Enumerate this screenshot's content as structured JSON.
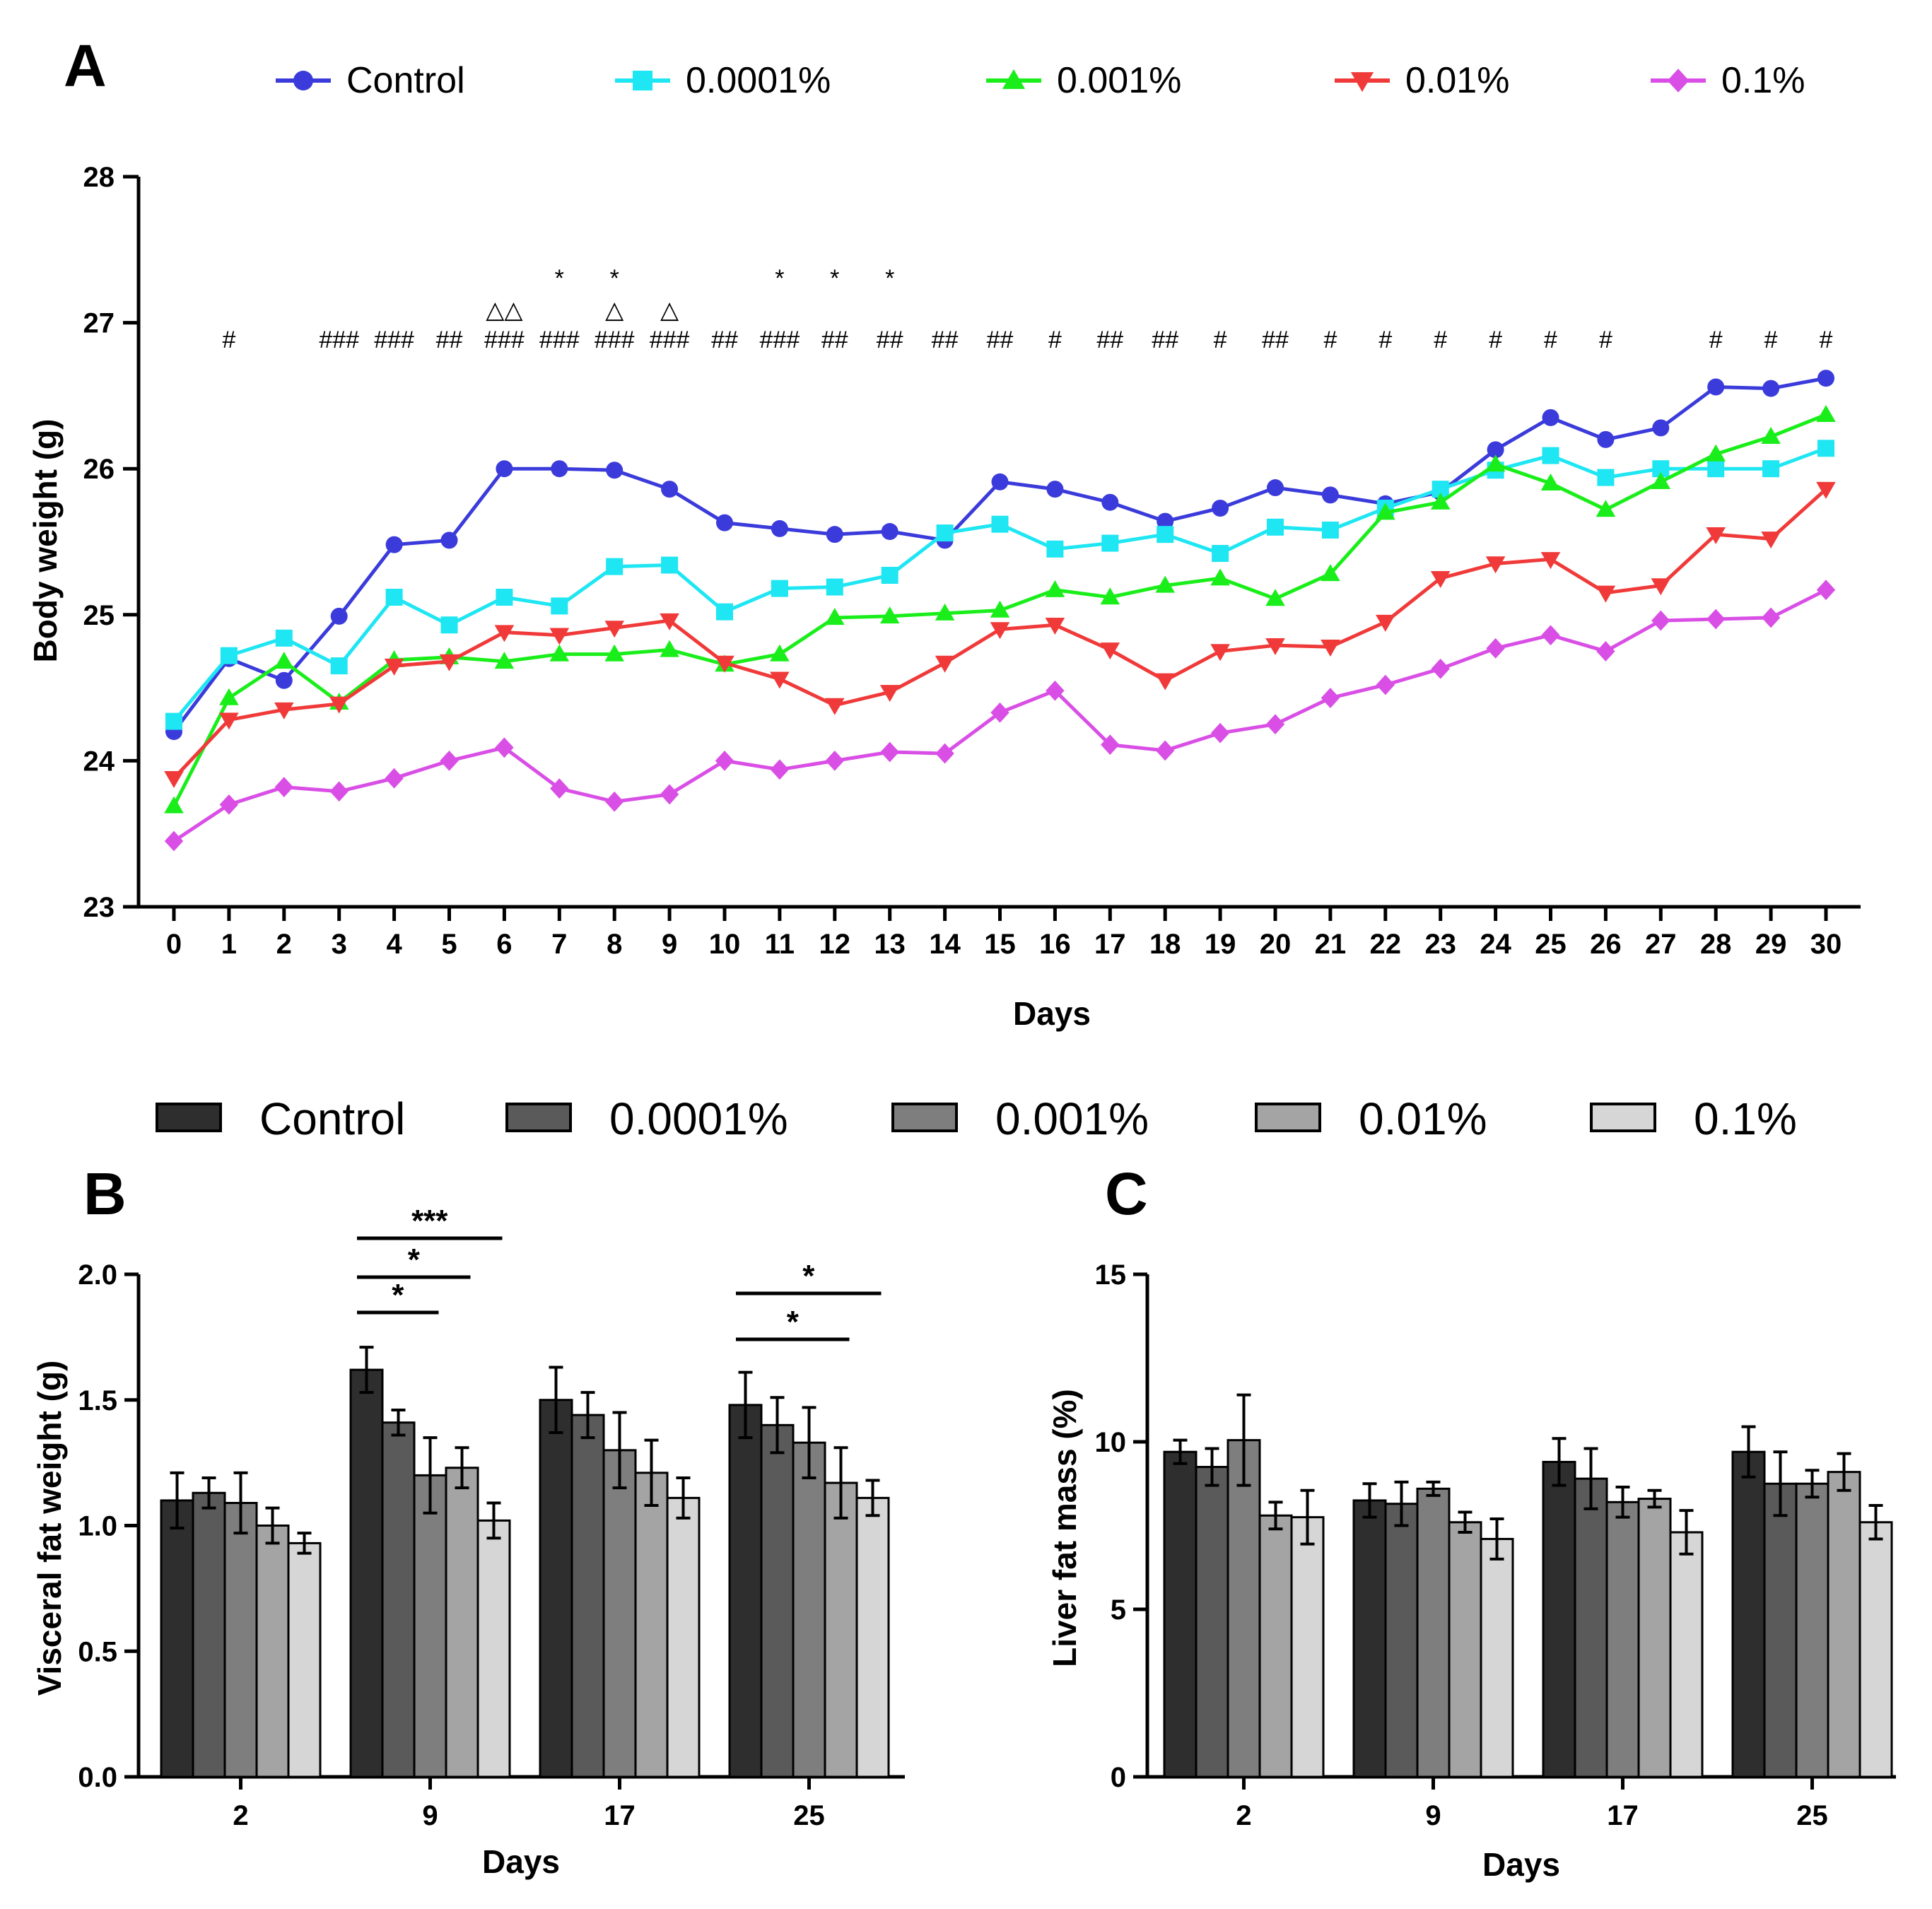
{
  "figure": {
    "panel_labels": [
      "A",
      "B",
      "C"
    ]
  },
  "chart_data": [
    {
      "panel": "A",
      "type": "line",
      "title": "",
      "xlabel": "Days",
      "ylabel": "Body weight (g)",
      "x": [
        0,
        1,
        2,
        3,
        4,
        5,
        6,
        7,
        8,
        9,
        10,
        11,
        12,
        13,
        14,
        15,
        16,
        17,
        18,
        19,
        20,
        21,
        22,
        23,
        24,
        25,
        26,
        27,
        28,
        29,
        30
      ],
      "ylim": [
        23,
        28
      ],
      "yticks": [
        23,
        24,
        25,
        26,
        27,
        28
      ],
      "legend_position": "top",
      "series": [
        {
          "name": "Control",
          "color": "#3b3bdb",
          "marker": "circle",
          "values": [
            24.2,
            24.7,
            24.55,
            24.99,
            25.48,
            25.51,
            26.0,
            26.0,
            25.99,
            25.86,
            25.63,
            25.59,
            25.55,
            25.57,
            25.51,
            25.91,
            25.86,
            25.77,
            25.64,
            25.73,
            25.87,
            25.82,
            25.76,
            25.84,
            26.13,
            26.35,
            26.2,
            26.28,
            26.56,
            26.55,
            26.62
          ]
        },
        {
          "name": "0.0001%",
          "color": "#1ee6f2",
          "marker": "square",
          "values": [
            24.27,
            24.72,
            24.84,
            24.65,
            25.12,
            24.93,
            25.12,
            25.06,
            25.33,
            25.34,
            25.02,
            25.18,
            25.19,
            25.27,
            25.56,
            25.62,
            25.45,
            25.49,
            25.55,
            25.42,
            25.6,
            25.58,
            25.73,
            25.86,
            25.99,
            26.09,
            25.94,
            26.0,
            26.0,
            26.0,
            26.14
          ]
        },
        {
          "name": "0.001%",
          "color": "#1aee1a",
          "marker": "triangle-up",
          "values": [
            23.69,
            24.43,
            24.68,
            24.4,
            24.69,
            24.71,
            24.68,
            24.73,
            24.73,
            24.76,
            24.66,
            24.73,
            24.98,
            24.99,
            25.01,
            25.03,
            25.17,
            25.12,
            25.2,
            25.25,
            25.11,
            25.28,
            25.7,
            25.77,
            26.03,
            25.9,
            25.72,
            25.91,
            26.1,
            26.22,
            26.37
          ]
        },
        {
          "name": "0.01%",
          "color": "#f03a3a",
          "marker": "triangle-down",
          "values": [
            23.88,
            24.28,
            24.35,
            24.39,
            24.65,
            24.68,
            24.88,
            24.86,
            24.91,
            24.96,
            24.67,
            24.56,
            24.38,
            24.47,
            24.67,
            24.9,
            24.93,
            24.76,
            24.55,
            24.75,
            24.79,
            24.78,
            24.95,
            25.25,
            25.35,
            25.38,
            25.15,
            25.2,
            25.55,
            25.52,
            25.86
          ]
        },
        {
          "name": "0.1%",
          "color": "#d94fe6",
          "marker": "diamond",
          "values": [
            23.45,
            23.7,
            23.82,
            23.79,
            23.88,
            24.0,
            24.09,
            23.81,
            23.72,
            23.77,
            24.0,
            23.94,
            24.0,
            24.06,
            24.05,
            24.33,
            24.48,
            24.11,
            24.07,
            24.19,
            24.25,
            24.43,
            24.52,
            24.63,
            24.77,
            24.86,
            24.75,
            24.96,
            24.97,
            24.98,
            25.17
          ]
        }
      ],
      "annotations": [
        {
          "day": 1,
          "hash": "#",
          "triangle": "",
          "star": ""
        },
        {
          "day": 3,
          "hash": "###",
          "triangle": "",
          "star": ""
        },
        {
          "day": 4,
          "hash": "###",
          "triangle": "",
          "star": ""
        },
        {
          "day": 5,
          "hash": "##",
          "triangle": "",
          "star": ""
        },
        {
          "day": 6,
          "hash": "###",
          "triangle": "△△",
          "star": ""
        },
        {
          "day": 7,
          "hash": "###",
          "triangle": "",
          "star": "*"
        },
        {
          "day": 8,
          "hash": "###",
          "triangle": "△",
          "star": "*"
        },
        {
          "day": 9,
          "hash": "###",
          "triangle": "△",
          "star": ""
        },
        {
          "day": 10,
          "hash": "##",
          "triangle": "",
          "star": ""
        },
        {
          "day": 11,
          "hash": "###",
          "triangle": "",
          "star": "*"
        },
        {
          "day": 12,
          "hash": "##",
          "triangle": "",
          "star": "*"
        },
        {
          "day": 13,
          "hash": "##",
          "triangle": "",
          "star": "*"
        },
        {
          "day": 14,
          "hash": "##",
          "triangle": "",
          "star": ""
        },
        {
          "day": 15,
          "hash": "##",
          "triangle": "",
          "star": ""
        },
        {
          "day": 16,
          "hash": "#",
          "triangle": "",
          "star": ""
        },
        {
          "day": 17,
          "hash": "##",
          "triangle": "",
          "star": ""
        },
        {
          "day": 18,
          "hash": "##",
          "triangle": "",
          "star": ""
        },
        {
          "day": 19,
          "hash": "#",
          "triangle": "",
          "star": ""
        },
        {
          "day": 20,
          "hash": "##",
          "triangle": "",
          "star": ""
        },
        {
          "day": 21,
          "hash": "#",
          "triangle": "",
          "star": ""
        },
        {
          "day": 22,
          "hash": "#",
          "triangle": "",
          "star": ""
        },
        {
          "day": 23,
          "hash": "#",
          "triangle": "",
          "star": ""
        },
        {
          "day": 24,
          "hash": "#",
          "triangle": "",
          "star": ""
        },
        {
          "day": 25,
          "hash": "#",
          "triangle": "",
          "star": ""
        },
        {
          "day": 26,
          "hash": "#",
          "triangle": "",
          "star": ""
        },
        {
          "day": 28,
          "hash": "#",
          "triangle": "",
          "star": ""
        },
        {
          "day": 29,
          "hash": "#",
          "triangle": "",
          "star": ""
        },
        {
          "day": 30,
          "hash": "#",
          "triangle": "",
          "star": ""
        }
      ]
    },
    {
      "panel": "B",
      "type": "bar",
      "title": "",
      "xlabel": "Days",
      "ylabel": "Visceral fat weight (g)",
      "categories": [
        "2",
        "9",
        "17",
        "25"
      ],
      "ylim": [
        0,
        2.0
      ],
      "yticks": [
        "0.0",
        "0.5",
        "1.0",
        "1.5",
        "2.0"
      ],
      "legend_position": "top",
      "series": [
        {
          "name": "Control",
          "color": "#2e2e2e",
          "values": [
            1.1,
            1.62,
            1.5,
            1.48
          ],
          "errors": [
            0.11,
            0.09,
            0.13,
            0.13
          ]
        },
        {
          "name": "0.0001%",
          "color": "#5a5a5a",
          "values": [
            1.13,
            1.41,
            1.44,
            1.4
          ],
          "errors": [
            0.06,
            0.05,
            0.09,
            0.11
          ]
        },
        {
          "name": "0.001%",
          "color": "#7e7e7e",
          "values": [
            1.09,
            1.2,
            1.3,
            1.33
          ],
          "errors": [
            0.12,
            0.15,
            0.15,
            0.14
          ]
        },
        {
          "name": "0.01%",
          "color": "#a4a4a4",
          "values": [
            1.0,
            1.23,
            1.21,
            1.17
          ],
          "errors": [
            0.07,
            0.08,
            0.13,
            0.14
          ]
        },
        {
          "name": "0.1%",
          "color": "#d6d6d6",
          "values": [
            0.93,
            1.02,
            1.11,
            1.11
          ],
          "errors": [
            0.04,
            0.07,
            0.08,
            0.07
          ]
        }
      ],
      "significance": [
        {
          "category": "9",
          "from_series": 0,
          "to_series": 4,
          "label": "***"
        },
        {
          "category": "9",
          "from_series": 0,
          "to_series": 3,
          "label": "*"
        },
        {
          "category": "9",
          "from_series": 0,
          "to_series": 2,
          "label": "*"
        },
        {
          "category": "25",
          "from_series": 0,
          "to_series": 4,
          "label": "*"
        },
        {
          "category": "25",
          "from_series": 0,
          "to_series": 3,
          "label": "*"
        }
      ]
    },
    {
      "panel": "C",
      "type": "bar",
      "title": "",
      "xlabel": "Days",
      "ylabel": "Liver fat mass (%)",
      "categories": [
        "2",
        "9",
        "17",
        "25"
      ],
      "ylim": [
        0,
        15
      ],
      "yticks": [
        "0",
        "5",
        "10",
        "15"
      ],
      "legend_position": "top",
      "series": [
        {
          "name": "Control",
          "color": "#2e2e2e",
          "values": [
            9.7,
            8.25,
            9.4,
            9.7
          ],
          "errors": [
            0.35,
            0.5,
            0.7,
            0.75
          ]
        },
        {
          "name": "0.0001%",
          "color": "#5a5a5a",
          "values": [
            9.25,
            8.15,
            8.9,
            8.75
          ],
          "errors": [
            0.55,
            0.65,
            0.9,
            0.95
          ]
        },
        {
          "name": "0.001%",
          "color": "#7e7e7e",
          "values": [
            10.05,
            8.6,
            8.2,
            8.75
          ],
          "errors": [
            1.35,
            0.2,
            0.45,
            0.4
          ]
        },
        {
          "name": "0.01%",
          "color": "#a4a4a4",
          "values": [
            7.8,
            7.6,
            8.3,
            9.1
          ],
          "errors": [
            0.4,
            0.3,
            0.25,
            0.55
          ]
        },
        {
          "name": "0.1%",
          "color": "#d6d6d6",
          "values": [
            7.75,
            7.1,
            7.3,
            7.6
          ],
          "errors": [
            0.8,
            0.6,
            0.65,
            0.5
          ]
        }
      ]
    }
  ]
}
